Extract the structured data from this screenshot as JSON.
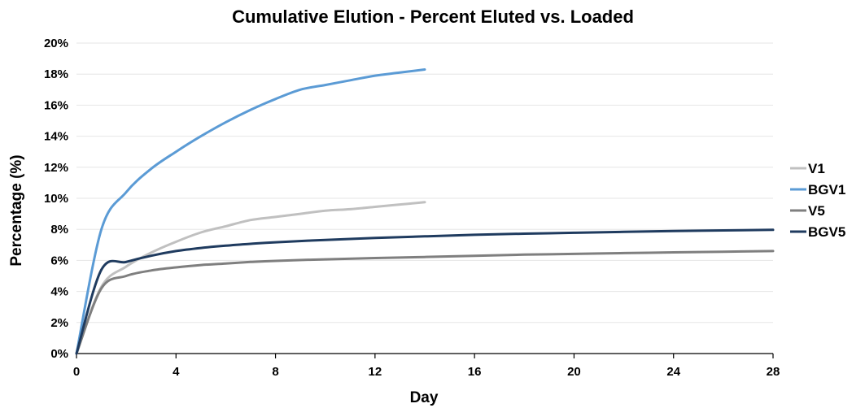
{
  "chart_data": {
    "type": "line",
    "title": "Cumulative Elution - Percent Eluted vs. Loaded",
    "xlabel": "Day",
    "ylabel": "Percentage (%)",
    "xlim": [
      0,
      28
    ],
    "ylim": [
      0,
      20
    ],
    "x_ticks": [
      0,
      4,
      8,
      12,
      16,
      20,
      24,
      28
    ],
    "y_ticks": [
      0,
      2,
      4,
      6,
      8,
      10,
      12,
      14,
      16,
      18,
      20
    ],
    "y_tick_labels": [
      "0%",
      "2%",
      "4%",
      "6%",
      "8%",
      "10%",
      "12%",
      "14%",
      "16%",
      "18%",
      "20%"
    ],
    "grid": "horizontal",
    "legend_position": "right",
    "series": [
      {
        "name": "V1",
        "color": "#c0c0c0",
        "points": [
          [
            0,
            0
          ],
          [
            1,
            4.3
          ],
          [
            2,
            5.6
          ],
          [
            3,
            6.5
          ],
          [
            4,
            7.2
          ],
          [
            5,
            7.8
          ],
          [
            6,
            8.2
          ],
          [
            7,
            8.6
          ],
          [
            8,
            8.8
          ],
          [
            9,
            9.0
          ],
          [
            10,
            9.2
          ],
          [
            11,
            9.3
          ],
          [
            12,
            9.45
          ],
          [
            13,
            9.6
          ],
          [
            14,
            9.75
          ]
        ]
      },
      {
        "name": "BGV1",
        "color": "#5b9bd5",
        "points": [
          [
            0,
            0
          ],
          [
            1,
            8.0
          ],
          [
            2,
            10.4
          ],
          [
            3,
            11.9
          ],
          [
            4,
            13.0
          ],
          [
            5,
            14.0
          ],
          [
            6,
            14.9
          ],
          [
            7,
            15.7
          ],
          [
            8,
            16.4
          ],
          [
            9,
            17.0
          ],
          [
            10,
            17.3
          ],
          [
            11,
            17.6
          ],
          [
            12,
            17.9
          ],
          [
            13,
            18.1
          ],
          [
            14,
            18.3
          ]
        ]
      },
      {
        "name": "V5",
        "color": "#7f7f7f",
        "points": [
          [
            0,
            0
          ],
          [
            1,
            4.2
          ],
          [
            2,
            5.0
          ],
          [
            3,
            5.35
          ],
          [
            4,
            5.55
          ],
          [
            5,
            5.7
          ],
          [
            6,
            5.8
          ],
          [
            7,
            5.9
          ],
          [
            8,
            5.97
          ],
          [
            10,
            6.07
          ],
          [
            12,
            6.15
          ],
          [
            14,
            6.22
          ],
          [
            16,
            6.3
          ],
          [
            18,
            6.37
          ],
          [
            20,
            6.42
          ],
          [
            22,
            6.47
          ],
          [
            24,
            6.52
          ],
          [
            26,
            6.56
          ],
          [
            28,
            6.6
          ]
        ]
      },
      {
        "name": "BGV5",
        "color": "#1f3b5f",
        "points": [
          [
            0,
            0
          ],
          [
            1,
            5.4
          ],
          [
            2,
            5.9
          ],
          [
            3,
            6.3
          ],
          [
            4,
            6.6
          ],
          [
            5,
            6.8
          ],
          [
            6,
            6.95
          ],
          [
            7,
            7.07
          ],
          [
            8,
            7.17
          ],
          [
            10,
            7.32
          ],
          [
            12,
            7.45
          ],
          [
            14,
            7.55
          ],
          [
            16,
            7.65
          ],
          [
            18,
            7.72
          ],
          [
            20,
            7.78
          ],
          [
            22,
            7.84
          ],
          [
            24,
            7.89
          ],
          [
            26,
            7.93
          ],
          [
            28,
            7.97
          ]
        ]
      }
    ]
  }
}
